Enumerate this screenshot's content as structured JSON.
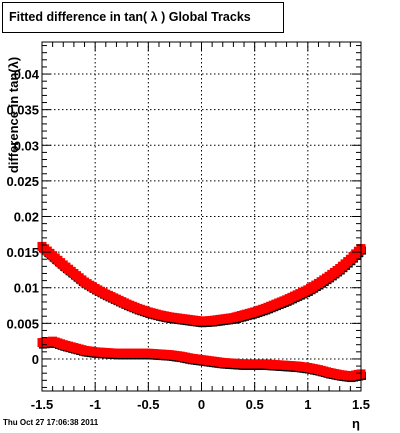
{
  "chart_data": {
    "type": "scatter",
    "title": "Fitted difference in tan( λ )  Global Tracks",
    "xlabel": "η",
    "ylabel": "difference in tan(λ)",
    "xlim": [
      -1.5,
      1.5
    ],
    "ylim": [
      -0.0045,
      0.0445
    ],
    "grid": true,
    "x_ticks": [
      -1.5,
      -1,
      -0.5,
      0,
      0.5,
      1,
      1.5
    ],
    "x_tick_labels": [
      "-1.5",
      "-1",
      "-0.5",
      "0",
      "0.5",
      "1",
      "1.5"
    ],
    "y_ticks": [
      0,
      0.005,
      0.01,
      0.015,
      0.02,
      0.025,
      0.03,
      0.035,
      0.04
    ],
    "y_tick_labels": [
      "0",
      "0.005",
      "0.01",
      "0.015",
      "0.02",
      "0.025",
      "0.03",
      "0.035",
      "0.04"
    ],
    "series": [
      {
        "color": "#ff0000",
        "shadow_color": "#000000",
        "x": [
          -1.5,
          -1.4,
          -1.3,
          -1.2,
          -1.1,
          -1.0,
          -0.9,
          -0.8,
          -0.7,
          -0.6,
          -0.5,
          -0.4,
          -0.3,
          -0.2,
          -0.1,
          0.0,
          0.1,
          0.2,
          0.3,
          0.4,
          0.5,
          0.6,
          0.7,
          0.8,
          0.9,
          1.0,
          1.1,
          1.2,
          1.3,
          1.4,
          1.5
        ],
        "y": [
          0.0158,
          0.0145,
          0.0132,
          0.012,
          0.0108,
          0.0099,
          0.0091,
          0.0084,
          0.0077,
          0.0071,
          0.0066,
          0.0062,
          0.0059,
          0.0057,
          0.0055,
          0.0053,
          0.0054,
          0.0056,
          0.0058,
          0.0062,
          0.0066,
          0.0071,
          0.0077,
          0.0083,
          0.009,
          0.0097,
          0.0106,
          0.0116,
          0.0127,
          0.014,
          0.0155
        ]
      },
      {
        "color": "#ff0000",
        "shadow_color": "#000000",
        "x": [
          -1.5,
          -1.4,
          -1.3,
          -1.2,
          -1.1,
          -1.0,
          -0.9,
          -0.8,
          -0.7,
          -0.6,
          -0.5,
          -0.4,
          -0.3,
          -0.2,
          -0.1,
          0.0,
          0.1,
          0.2,
          0.3,
          0.4,
          0.5,
          0.6,
          0.7,
          0.8,
          0.9,
          1.0,
          1.1,
          1.2,
          1.3,
          1.4,
          1.5
        ],
        "y": [
          0.0023,
          0.0025,
          0.002,
          0.0016,
          0.0012,
          0.001,
          0.0009,
          0.0008,
          0.0008,
          0.0008,
          0.0008,
          0.0007,
          0.0006,
          0.0004,
          0.0001,
          -0.0001,
          -0.0003,
          -0.0005,
          -0.0006,
          -0.0007,
          -0.0007,
          -0.0007,
          -0.0008,
          -0.0009,
          -0.001,
          -0.0012,
          -0.0015,
          -0.0019,
          -0.0022,
          -0.0024,
          -0.0021
        ]
      }
    ]
  },
  "footer": {
    "timestamp": "Thu Oct 27 17:06:38 2011"
  }
}
